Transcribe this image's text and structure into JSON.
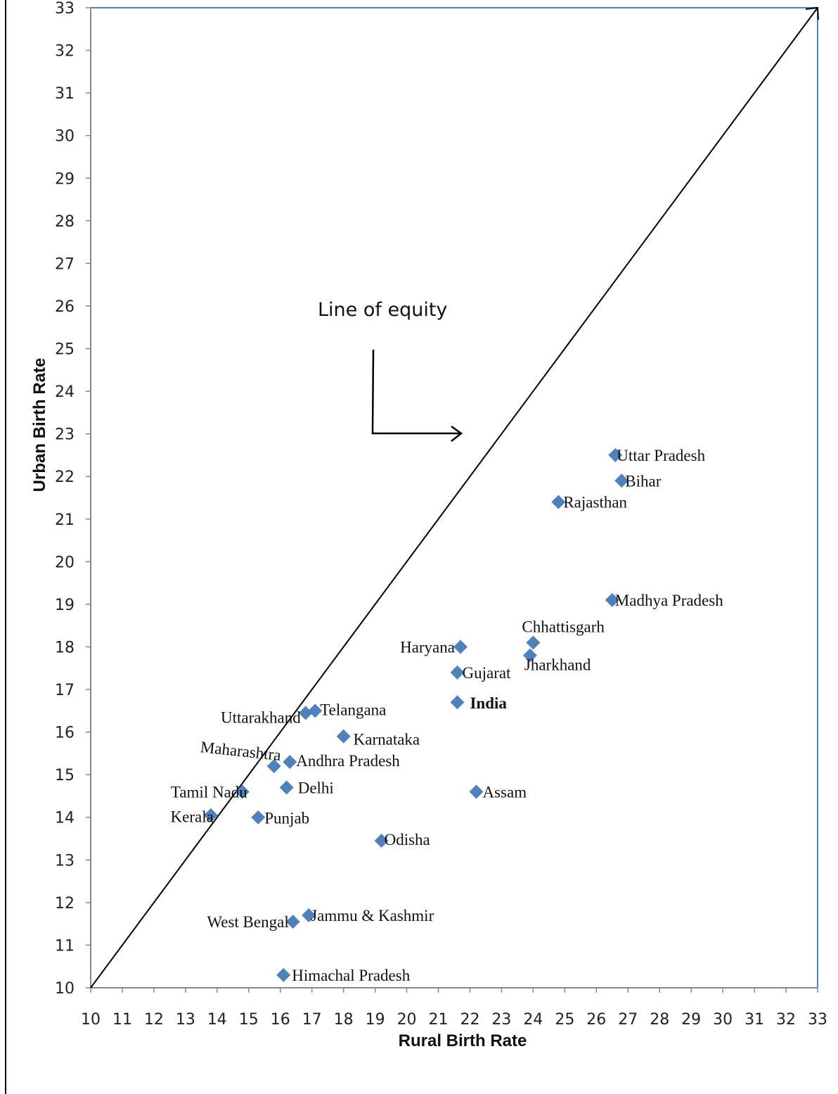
{
  "chart_data": {
    "type": "scatter",
    "xlabel": "Rural Birth Rate",
    "ylabel": "Urban Birth Rate",
    "xlim": [
      10,
      33
    ],
    "ylim": [
      10,
      33
    ],
    "xticks": [
      10,
      11,
      12,
      13,
      14,
      15,
      16,
      17,
      18,
      19,
      20,
      21,
      22,
      23,
      24,
      25,
      26,
      27,
      28,
      29,
      30,
      31,
      32,
      33
    ],
    "yticks": [
      10,
      11,
      12,
      13,
      14,
      15,
      16,
      17,
      18,
      19,
      20,
      21,
      22,
      23,
      24,
      25,
      26,
      27,
      28,
      29,
      30,
      31,
      32,
      33
    ],
    "grid": false,
    "marker_color": "#4F81BD",
    "reference_line": {
      "from": [
        10,
        10
      ],
      "to": [
        33,
        33
      ]
    },
    "annotation": {
      "text": "Line of equity"
    },
    "points": [
      {
        "label": "Uttar Pradesh",
        "x": 26.6,
        "y": 22.5
      },
      {
        "label": "Bihar",
        "x": 26.8,
        "y": 21.9
      },
      {
        "label": "Rajasthan",
        "x": 24.8,
        "y": 21.4
      },
      {
        "label": "Madhya Pradesh",
        "x": 26.5,
        "y": 19.1
      },
      {
        "label": "Chhattisgarh",
        "x": 24.0,
        "y": 18.1
      },
      {
        "label": "Jharkhand",
        "x": 23.9,
        "y": 17.8
      },
      {
        "label": "Haryana",
        "x": 21.7,
        "y": 18.0
      },
      {
        "label": "Gujarat",
        "x": 21.6,
        "y": 17.4
      },
      {
        "label": "India",
        "x": 21.6,
        "y": 16.7,
        "bold": true
      },
      {
        "label": "Telangana",
        "x": 17.1,
        "y": 16.5
      },
      {
        "label": "Uttarakhand",
        "x": 16.8,
        "y": 16.45
      },
      {
        "label": "Karnataka",
        "x": 18.0,
        "y": 15.9
      },
      {
        "label": "Andhra Pradesh",
        "x": 16.3,
        "y": 15.3
      },
      {
        "label": "Maharashtra",
        "x": 15.8,
        "y": 15.2
      },
      {
        "label": "Delhi",
        "x": 16.2,
        "y": 14.7
      },
      {
        "label": "Tamil Nadu",
        "x": 14.8,
        "y": 14.6
      },
      {
        "label": "Assam",
        "x": 22.2,
        "y": 14.6
      },
      {
        "label": "Punjab",
        "x": 15.3,
        "y": 14.0
      },
      {
        "label": "Kerala",
        "x": 13.8,
        "y": 14.05
      },
      {
        "label": "Odisha",
        "x": 19.2,
        "y": 13.45
      },
      {
        "label": "Jammu & Kashmir",
        "x": 16.9,
        "y": 11.7
      },
      {
        "label": "West Bengal",
        "x": 16.4,
        "y": 11.55
      },
      {
        "label": "Himachal  Pradesh",
        "x": 16.1,
        "y": 10.3
      }
    ]
  }
}
